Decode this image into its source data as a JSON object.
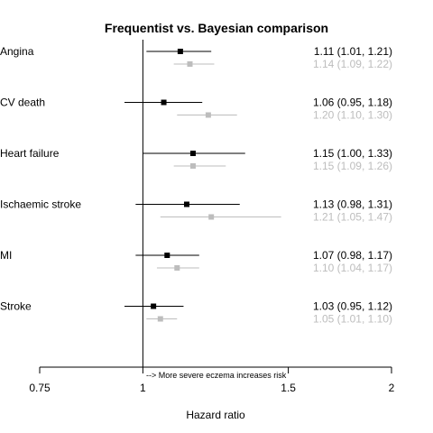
{
  "chart_data": {
    "type": "forest",
    "title": "Frequentist vs. Bayesian comparison",
    "xlabel": "Hazard ratio",
    "x_scale": "log",
    "xlim": [
      0.75,
      2
    ],
    "x_ticks": [
      0.75,
      1,
      1.5,
      2
    ],
    "x_tick_labels": [
      "0.75",
      "1",
      "1.5",
      "2"
    ],
    "reference_line": 1,
    "annotation": "--> More severe eczema increases risk",
    "series": [
      {
        "color": "#000000"
      },
      {
        "color": "#bdbdbd"
      }
    ],
    "outcomes": [
      {
        "label": "Angina",
        "frequentist": {
          "hr": 1.11,
          "lower": 1.01,
          "upper": 1.21,
          "text": "1.11 (1.01, 1.21)"
        },
        "bayesian": {
          "hr": 1.14,
          "lower": 1.09,
          "upper": 1.22,
          "text": "1.14 (1.09, 1.22)"
        }
      },
      {
        "label": "CV death",
        "frequentist": {
          "hr": 1.06,
          "lower": 0.95,
          "upper": 1.18,
          "text": "1.06 (0.95, 1.18)"
        },
        "bayesian": {
          "hr": 1.2,
          "lower": 1.1,
          "upper": 1.3,
          "text": "1.20 (1.10, 1.30)"
        }
      },
      {
        "label": "Heart failure",
        "frequentist": {
          "hr": 1.15,
          "lower": 1.0,
          "upper": 1.33,
          "text": "1.15 (1.00, 1.33)"
        },
        "bayesian": {
          "hr": 1.15,
          "lower": 1.09,
          "upper": 1.26,
          "text": "1.15 (1.09, 1.26)"
        }
      },
      {
        "label": "Ischaemic stroke",
        "frequentist": {
          "hr": 1.13,
          "lower": 0.98,
          "upper": 1.31,
          "text": "1.13 (0.98, 1.31)"
        },
        "bayesian": {
          "hr": 1.21,
          "lower": 1.05,
          "upper": 1.47,
          "text": "1.21 (1.05, 1.47)"
        }
      },
      {
        "label": "MI",
        "frequentist": {
          "hr": 1.07,
          "lower": 0.98,
          "upper": 1.17,
          "text": "1.07 (0.98, 1.17)"
        },
        "bayesian": {
          "hr": 1.1,
          "lower": 1.04,
          "upper": 1.17,
          "text": "1.10 (1.04, 1.17)"
        }
      },
      {
        "label": "Stroke",
        "frequentist": {
          "hr": 1.03,
          "lower": 0.95,
          "upper": 1.12,
          "text": "1.03 (0.95, 1.12)"
        },
        "bayesian": {
          "hr": 1.05,
          "lower": 1.01,
          "upper": 1.1,
          "text": "1.05 (1.01, 1.10)"
        }
      }
    ]
  }
}
